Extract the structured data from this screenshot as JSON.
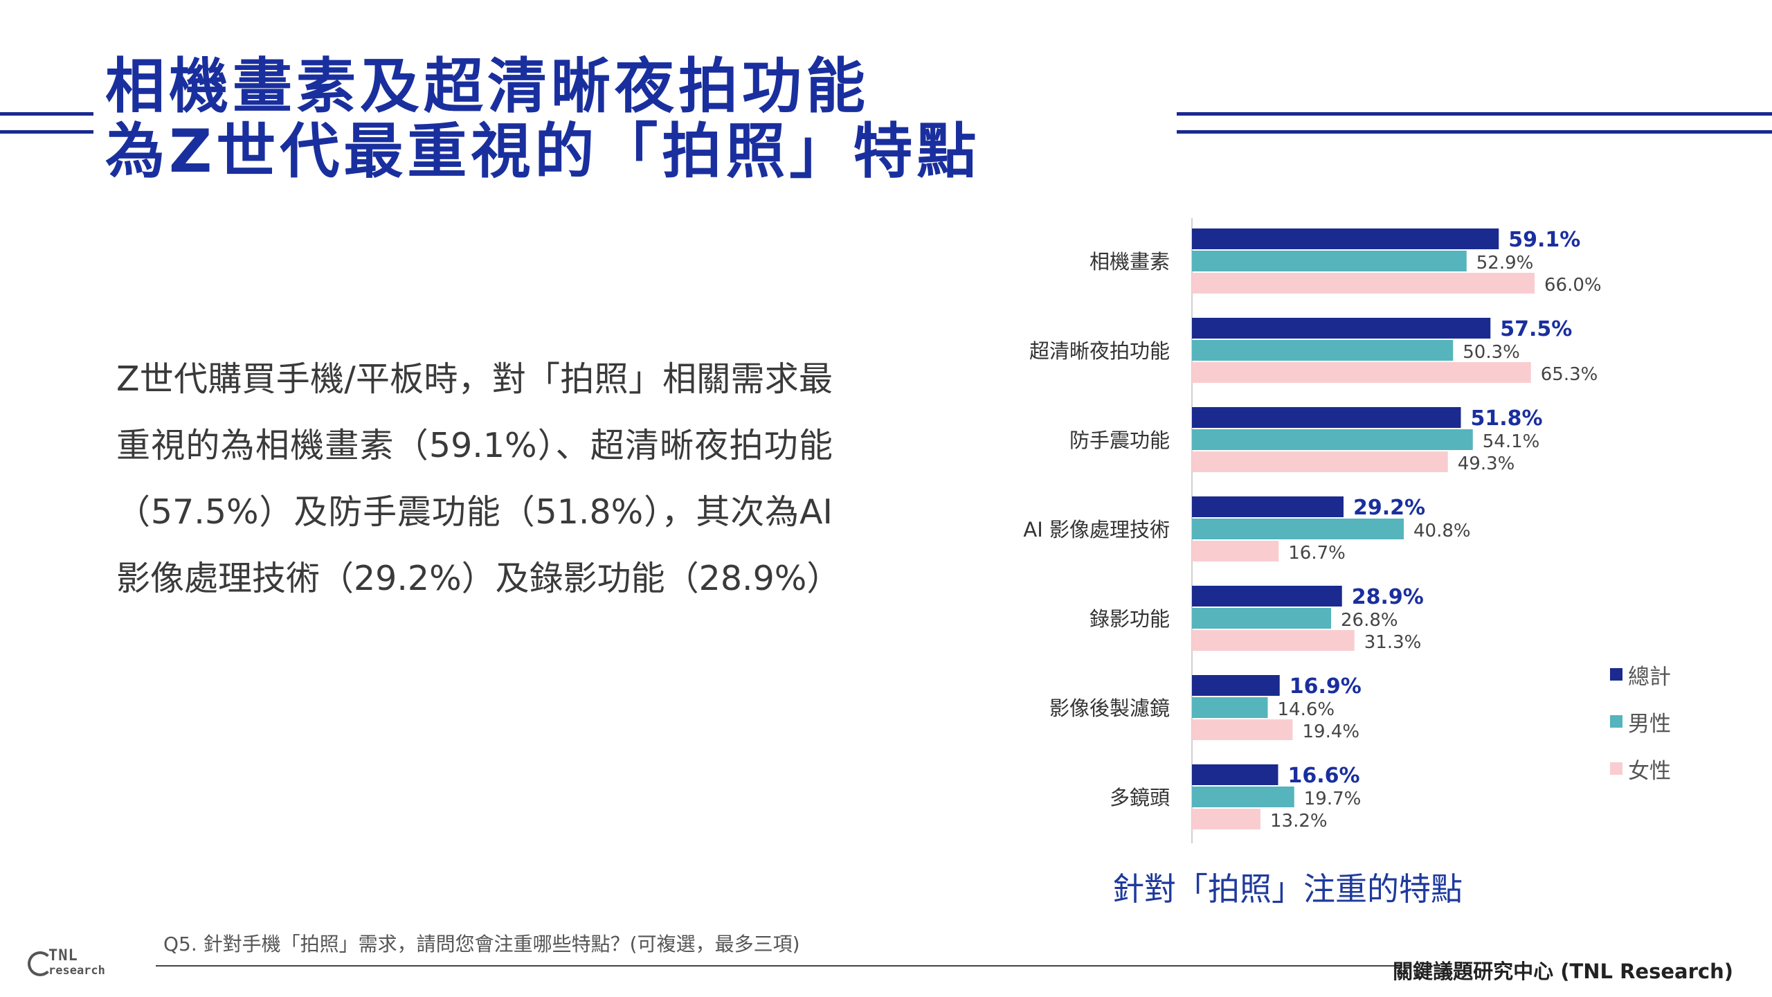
{
  "title": {
    "line1": "相機畫素及超清晰夜拍功能",
    "line2": "為Z世代最重視的「拍照」特點"
  },
  "body_text": "Z世代購買手機/平板時，對「拍照」相關需求最重視的為相機畫素（59.1%）、超清晰夜拍功能（57.5%）及防手震功能（51.8%），其次為AI影像處理技術（29.2%）及錄影功能（28.9%）",
  "chart_data": {
    "type": "bar",
    "orientation": "horizontal",
    "categories": [
      "相機畫素",
      "超清晰夜拍功能",
      "防手震功能",
      "AI 影像處理技術",
      "錄影功能",
      "影像後製濾鏡",
      "多鏡頭"
    ],
    "series": [
      {
        "name": "總計",
        "color": "#1a2a8f",
        "values": [
          59.1,
          57.5,
          51.8,
          29.2,
          28.9,
          16.9,
          16.6
        ]
      },
      {
        "name": "男性",
        "color": "#55b4bc",
        "values": [
          52.9,
          50.3,
          54.1,
          40.8,
          26.8,
          14.6,
          19.7
        ]
      },
      {
        "name": "女性",
        "color": "#f9cdd0",
        "values": [
          66.0,
          65.3,
          49.3,
          16.7,
          31.3,
          19.4,
          13.2
        ]
      }
    ],
    "value_suffix": "%",
    "xlim": [
      0,
      100
    ],
    "title": "針對「拍照」注重的特點",
    "legend_position": "right",
    "grid": false
  },
  "question": "Q5. 針對手機「拍照」需求，請問您會注重哪些特點？(可複選，最多三項)",
  "source": "關鍵議題研究中心 (TNL Research)",
  "logo": {
    "line1": "TNL",
    "line2": "research"
  }
}
